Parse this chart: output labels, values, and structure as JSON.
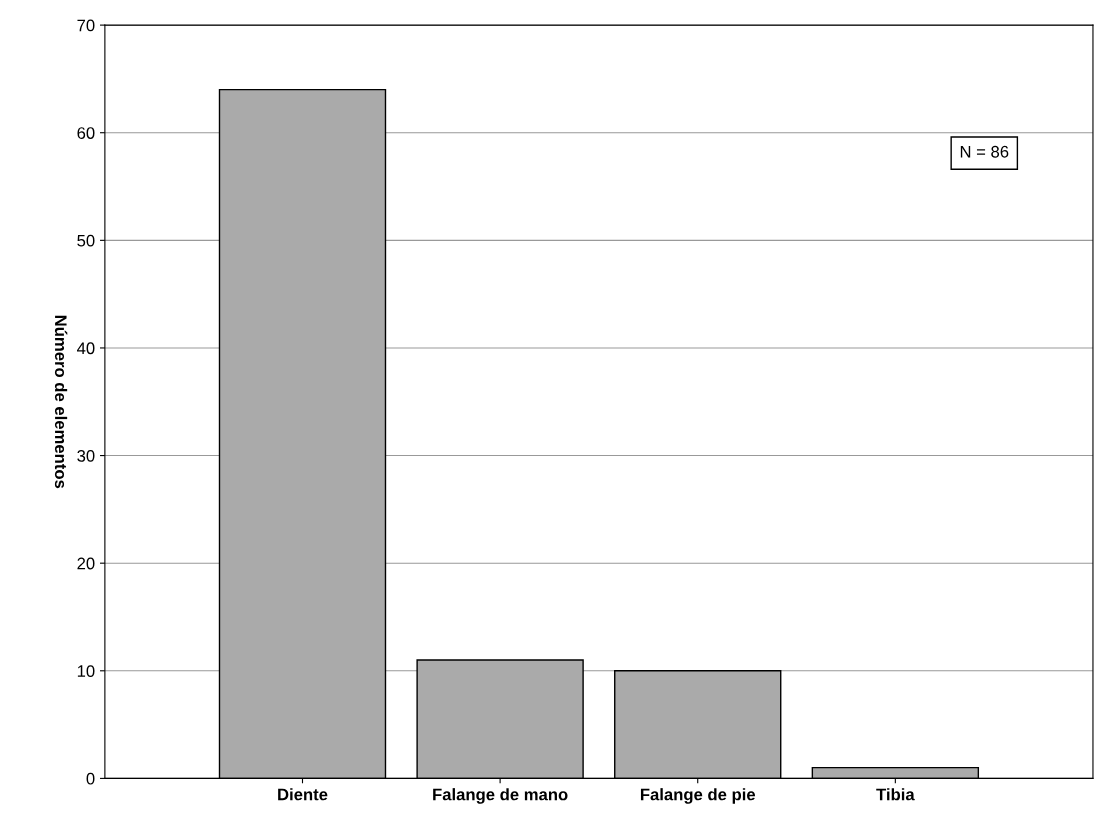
{
  "chart_data": {
    "type": "bar",
    "ylabel": "Número de elementos",
    "categories": [
      "Diente",
      "Falange de mano",
      "Falange de pie",
      "Tibia"
    ],
    "values": [
      64,
      11,
      10,
      1
    ],
    "color": "#aaaaaa",
    "ylim": [
      0,
      70
    ],
    "yticks": [
      0,
      10,
      20,
      30,
      40,
      50,
      60,
      70
    ],
    "grid": "y",
    "annotations": [
      "N = 86"
    ]
  }
}
